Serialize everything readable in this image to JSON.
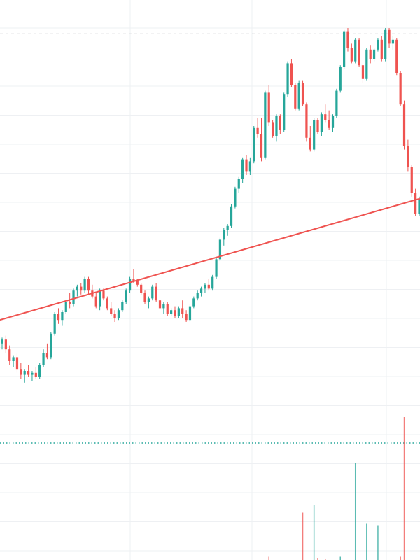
{
  "colors": {
    "up": "#26a69a",
    "down": "#ef5350",
    "grid": "#eef0f3",
    "background": "#ffffff",
    "trendline": "#ef5350",
    "dashed_level": "#9598a1",
    "dotted_level": "#26a69a",
    "volume_up": "#26a69a",
    "volume_down": "#ef5350"
  },
  "chart_data": {
    "type": "candlestick",
    "title": "",
    "xlabel": "",
    "ylabel": "",
    "grid": true,
    "legend": "none",
    "price_range": [
      0,
      100
    ],
    "volume_range": [
      0,
      100
    ],
    "candles": [
      {
        "o": 19.5,
        "h": 21.0,
        "l": 18.0,
        "c": 20.5
      },
      {
        "o": 20.5,
        "h": 21.5,
        "l": 17.0,
        "c": 18.0
      },
      {
        "o": 18.0,
        "h": 19.0,
        "l": 14.0,
        "c": 15.0
      },
      {
        "o": 15.0,
        "h": 16.5,
        "l": 13.5,
        "c": 16.0
      },
      {
        "o": 16.0,
        "h": 17.0,
        "l": 12.0,
        "c": 13.0
      },
      {
        "o": 13.0,
        "h": 14.5,
        "l": 10.5,
        "c": 11.5
      },
      {
        "o": 11.5,
        "h": 13.0,
        "l": 9.5,
        "c": 12.5
      },
      {
        "o": 12.5,
        "h": 14.0,
        "l": 11.0,
        "c": 11.5
      },
      {
        "o": 11.5,
        "h": 12.5,
        "l": 10.0,
        "c": 12.0
      },
      {
        "o": 12.0,
        "h": 13.5,
        "l": 10.5,
        "c": 11.0
      },
      {
        "o": 11.0,
        "h": 14.5,
        "l": 10.5,
        "c": 14.0
      },
      {
        "o": 14.0,
        "h": 18.0,
        "l": 13.5,
        "c": 17.0
      },
      {
        "o": 17.0,
        "h": 19.5,
        "l": 15.5,
        "c": 16.0
      },
      {
        "o": 16.0,
        "h": 22.5,
        "l": 15.5,
        "c": 22.0
      },
      {
        "o": 22.0,
        "h": 27.5,
        "l": 21.5,
        "c": 27.0
      },
      {
        "o": 27.0,
        "h": 28.5,
        "l": 24.5,
        "c": 25.5
      },
      {
        "o": 25.5,
        "h": 28.0,
        "l": 24.0,
        "c": 27.5
      },
      {
        "o": 27.5,
        "h": 30.5,
        "l": 27.0,
        "c": 30.0
      },
      {
        "o": 30.0,
        "h": 32.5,
        "l": 28.5,
        "c": 29.5
      },
      {
        "o": 29.5,
        "h": 33.5,
        "l": 29.0,
        "c": 33.0
      },
      {
        "o": 33.0,
        "h": 34.5,
        "l": 31.5,
        "c": 34.0
      },
      {
        "o": 34.0,
        "h": 35.0,
        "l": 32.0,
        "c": 33.0
      },
      {
        "o": 33.0,
        "h": 36.5,
        "l": 32.5,
        "c": 36.0
      },
      {
        "o": 36.0,
        "h": 36.5,
        "l": 32.0,
        "c": 33.0
      },
      {
        "o": 33.0,
        "h": 34.5,
        "l": 31.0,
        "c": 31.5
      },
      {
        "o": 31.5,
        "h": 32.5,
        "l": 28.5,
        "c": 29.0
      },
      {
        "o": 29.0,
        "h": 33.5,
        "l": 28.0,
        "c": 33.0
      },
      {
        "o": 33.0,
        "h": 33.5,
        "l": 30.5,
        "c": 31.0
      },
      {
        "o": 31.0,
        "h": 31.5,
        "l": 28.0,
        "c": 28.5
      },
      {
        "o": 28.5,
        "h": 30.0,
        "l": 26.5,
        "c": 27.0
      },
      {
        "o": 27.0,
        "h": 28.0,
        "l": 25.0,
        "c": 26.0
      },
      {
        "o": 26.0,
        "h": 28.5,
        "l": 25.5,
        "c": 28.0
      },
      {
        "o": 28.0,
        "h": 30.5,
        "l": 27.5,
        "c": 30.0
      },
      {
        "o": 30.0,
        "h": 33.5,
        "l": 29.5,
        "c": 33.0
      },
      {
        "o": 33.0,
        "h": 36.5,
        "l": 32.5,
        "c": 36.0
      },
      {
        "o": 36.0,
        "h": 38.5,
        "l": 35.0,
        "c": 35.5
      },
      {
        "o": 35.5,
        "h": 36.0,
        "l": 34.0,
        "c": 34.5
      },
      {
        "o": 34.5,
        "h": 35.0,
        "l": 32.0,
        "c": 32.5
      },
      {
        "o": 32.5,
        "h": 33.0,
        "l": 29.5,
        "c": 30.0
      },
      {
        "o": 30.0,
        "h": 31.5,
        "l": 28.5,
        "c": 31.0
      },
      {
        "o": 31.0,
        "h": 34.5,
        "l": 30.5,
        "c": 34.0
      },
      {
        "o": 34.0,
        "h": 35.0,
        "l": 30.0,
        "c": 30.5
      },
      {
        "o": 30.5,
        "h": 31.0,
        "l": 28.0,
        "c": 28.5
      },
      {
        "o": 28.5,
        "h": 30.0,
        "l": 27.0,
        "c": 29.5
      },
      {
        "o": 29.5,
        "h": 30.0,
        "l": 26.5,
        "c": 27.0
      },
      {
        "o": 27.0,
        "h": 28.5,
        "l": 26.5,
        "c": 28.0
      },
      {
        "o": 28.0,
        "h": 29.0,
        "l": 26.0,
        "c": 26.5
      },
      {
        "o": 26.5,
        "h": 29.0,
        "l": 26.0,
        "c": 28.5
      },
      {
        "o": 28.5,
        "h": 30.5,
        "l": 26.0,
        "c": 27.0
      },
      {
        "o": 27.0,
        "h": 28.0,
        "l": 25.0,
        "c": 25.5
      },
      {
        "o": 25.5,
        "h": 29.5,
        "l": 25.0,
        "c": 29.0
      },
      {
        "o": 29.0,
        "h": 31.5,
        "l": 28.5,
        "c": 31.0
      },
      {
        "o": 31.0,
        "h": 33.0,
        "l": 30.5,
        "c": 32.5
      },
      {
        "o": 32.5,
        "h": 34.0,
        "l": 31.5,
        "c": 33.5
      },
      {
        "o": 33.5,
        "h": 35.0,
        "l": 32.5,
        "c": 34.5
      },
      {
        "o": 34.5,
        "h": 36.0,
        "l": 33.0,
        "c": 33.5
      },
      {
        "o": 33.5,
        "h": 37.0,
        "l": 33.0,
        "c": 36.5
      },
      {
        "o": 36.5,
        "h": 41.5,
        "l": 36.0,
        "c": 41.0
      },
      {
        "o": 41.0,
        "h": 46.5,
        "l": 40.5,
        "c": 46.0
      },
      {
        "o": 46.0,
        "h": 49.0,
        "l": 44.5,
        "c": 48.5
      },
      {
        "o": 48.5,
        "h": 50.0,
        "l": 47.0,
        "c": 49.5
      },
      {
        "o": 49.5,
        "h": 55.0,
        "l": 49.0,
        "c": 54.5
      },
      {
        "o": 54.5,
        "h": 59.5,
        "l": 54.0,
        "c": 59.0
      },
      {
        "o": 59.0,
        "h": 62.0,
        "l": 58.0,
        "c": 61.5
      },
      {
        "o": 61.5,
        "h": 67.0,
        "l": 60.5,
        "c": 66.5
      },
      {
        "o": 66.5,
        "h": 67.5,
        "l": 62.5,
        "c": 63.5
      },
      {
        "o": 63.5,
        "h": 67.0,
        "l": 62.5,
        "c": 66.0
      },
      {
        "o": 66.0,
        "h": 75.0,
        "l": 65.5,
        "c": 74.5
      },
      {
        "o": 74.5,
        "h": 77.0,
        "l": 72.0,
        "c": 73.0
      },
      {
        "o": 73.0,
        "h": 77.0,
        "l": 66.0,
        "c": 67.0
      },
      {
        "o": 67.0,
        "h": 84.0,
        "l": 66.5,
        "c": 83.5
      },
      {
        "o": 83.5,
        "h": 85.5,
        "l": 75.0,
        "c": 76.0
      },
      {
        "o": 76.0,
        "h": 76.5,
        "l": 72.0,
        "c": 72.5
      },
      {
        "o": 72.5,
        "h": 78.0,
        "l": 71.0,
        "c": 77.5
      },
      {
        "o": 77.5,
        "h": 78.0,
        "l": 73.0,
        "c": 74.0
      },
      {
        "o": 74.0,
        "h": 83.5,
        "l": 73.5,
        "c": 83.0
      },
      {
        "o": 83.0,
        "h": 91.5,
        "l": 82.5,
        "c": 91.0
      },
      {
        "o": 91.0,
        "h": 92.0,
        "l": 85.0,
        "c": 85.5
      },
      {
        "o": 85.5,
        "h": 86.0,
        "l": 79.0,
        "c": 79.5
      },
      {
        "o": 79.5,
        "h": 86.5,
        "l": 79.0,
        "c": 86.0
      },
      {
        "o": 86.0,
        "h": 86.5,
        "l": 80.0,
        "c": 80.5
      },
      {
        "o": 80.5,
        "h": 81.0,
        "l": 71.0,
        "c": 72.0
      },
      {
        "o": 72.0,
        "h": 75.0,
        "l": 68.5,
        "c": 69.0
      },
      {
        "o": 69.0,
        "h": 77.0,
        "l": 68.5,
        "c": 76.5
      },
      {
        "o": 76.5,
        "h": 77.0,
        "l": 73.0,
        "c": 73.5
      },
      {
        "o": 73.5,
        "h": 78.5,
        "l": 72.5,
        "c": 78.0
      },
      {
        "o": 78.0,
        "h": 80.5,
        "l": 76.0,
        "c": 76.5
      },
      {
        "o": 76.5,
        "h": 79.0,
        "l": 74.0,
        "c": 74.5
      },
      {
        "o": 74.5,
        "h": 78.0,
        "l": 73.5,
        "c": 77.5
      },
      {
        "o": 77.5,
        "h": 84.5,
        "l": 77.0,
        "c": 84.0
      },
      {
        "o": 84.0,
        "h": 90.5,
        "l": 83.5,
        "c": 90.0
      },
      {
        "o": 90.0,
        "h": 99.5,
        "l": 89.5,
        "c": 99.0
      },
      {
        "o": 99.0,
        "h": 100.0,
        "l": 94.0,
        "c": 95.0
      },
      {
        "o": 95.0,
        "h": 96.0,
        "l": 91.0,
        "c": 91.5
      },
      {
        "o": 91.5,
        "h": 97.5,
        "l": 91.0,
        "c": 97.0
      },
      {
        "o": 97.0,
        "h": 97.5,
        "l": 90.0,
        "c": 90.5
      },
      {
        "o": 90.5,
        "h": 91.0,
        "l": 86.0,
        "c": 87.0
      },
      {
        "o": 87.0,
        "h": 95.0,
        "l": 86.5,
        "c": 94.5
      },
      {
        "o": 94.5,
        "h": 95.5,
        "l": 91.0,
        "c": 92.0
      },
      {
        "o": 92.0,
        "h": 95.0,
        "l": 91.5,
        "c": 94.5
      },
      {
        "o": 94.5,
        "h": 97.5,
        "l": 94.0,
        "c": 97.0
      },
      {
        "o": 97.0,
        "h": 98.0,
        "l": 91.5,
        "c": 92.0
      },
      {
        "o": 92.0,
        "h": 100.0,
        "l": 91.5,
        "c": 99.5
      },
      {
        "o": 99.5,
        "h": 100.0,
        "l": 95.0,
        "c": 96.0
      },
      {
        "o": 96.0,
        "h": 98.0,
        "l": 94.5,
        "c": 97.0
      },
      {
        "o": 97.0,
        "h": 97.5,
        "l": 88.0,
        "c": 88.5
      },
      {
        "o": 88.5,
        "h": 89.0,
        "l": 80.0,
        "c": 80.5
      },
      {
        "o": 80.5,
        "h": 81.5,
        "l": 69.0,
        "c": 70.0
      },
      {
        "o": 70.0,
        "h": 71.5,
        "l": 63.5,
        "c": 64.5
      },
      {
        "o": 64.5,
        "h": 65.0,
        "l": 57.0,
        "c": 58.0
      },
      {
        "o": 58.0,
        "h": 59.0,
        "l": 52.0,
        "c": 52.5
      },
      {
        "o": 52.5,
        "h": 57.0,
        "l": 52.0,
        "c": 56.5
      }
    ],
    "volume": [
      0,
      0,
      0,
      0,
      0,
      0,
      0,
      0,
      0,
      0,
      0,
      0,
      0,
      0,
      0,
      0,
      0,
      0,
      0,
      0,
      0,
      0,
      0,
      0,
      0,
      0,
      0,
      0,
      0,
      0,
      0,
      0,
      0,
      0,
      0,
      0,
      0,
      0,
      0,
      0,
      0,
      0,
      0,
      0,
      0,
      0,
      0,
      0,
      0,
      0,
      0,
      0,
      0,
      0,
      0,
      0,
      0,
      0,
      0,
      0,
      0,
      0,
      0,
      0,
      0,
      0,
      0,
      0,
      0,
      0,
      0,
      3,
      0,
      0,
      0,
      0,
      0,
      0,
      0,
      0,
      45,
      0,
      0,
      52,
      2,
      0,
      1,
      0,
      0,
      0,
      3,
      0,
      0,
      0,
      92,
      0,
      0,
      35,
      0,
      0,
      33,
      0,
      0,
      0,
      0,
      0,
      3,
      136,
      0,
      0,
      0,
      0
    ],
    "trendline": {
      "start": 25.5,
      "end": 56.5
    },
    "dashed_level": 98.5,
    "dotted_level": 0
  }
}
